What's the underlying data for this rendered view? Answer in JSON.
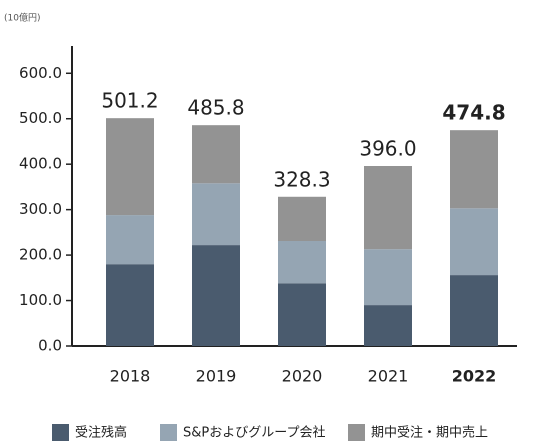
{
  "chart_data": {
    "type": "bar",
    "stacked": true,
    "unit_label": "(10億円)",
    "categories": [
      "2018",
      "2019",
      "2020",
      "2021",
      "2022"
    ],
    "series": [
      {
        "name": "受注残高",
        "color": "#4a5b6e",
        "values": [
          180,
          222,
          138,
          90,
          156
        ]
      },
      {
        "name": "S&Pおよびグループ会社",
        "color": "#95a5b3",
        "values": [
          108,
          136,
          93,
          123,
          147
        ]
      },
      {
        "name": "期中受注・期中売上",
        "color": "#939393",
        "values": [
          213.2,
          127.8,
          97.3,
          183,
          171.8
        ]
      }
    ],
    "totals": [
      501.2,
      485.8,
      328.3,
      396.0,
      474.8
    ],
    "total_labels": [
      "501.2",
      "485.8",
      "328.3",
      "396.0",
      "474.8"
    ],
    "ylim": [
      0,
      660
    ],
    "yticks": [
      {
        "value": 0,
        "label": "0.0"
      },
      {
        "value": 100,
        "label": "100.0"
      },
      {
        "value": 200,
        "label": "200.0"
      },
      {
        "value": 300,
        "label": "300.0"
      },
      {
        "value": 400,
        "label": "400.0"
      },
      {
        "value": 500,
        "label": "500.0"
      },
      {
        "value": 600,
        "label": "600.0"
      }
    ]
  }
}
